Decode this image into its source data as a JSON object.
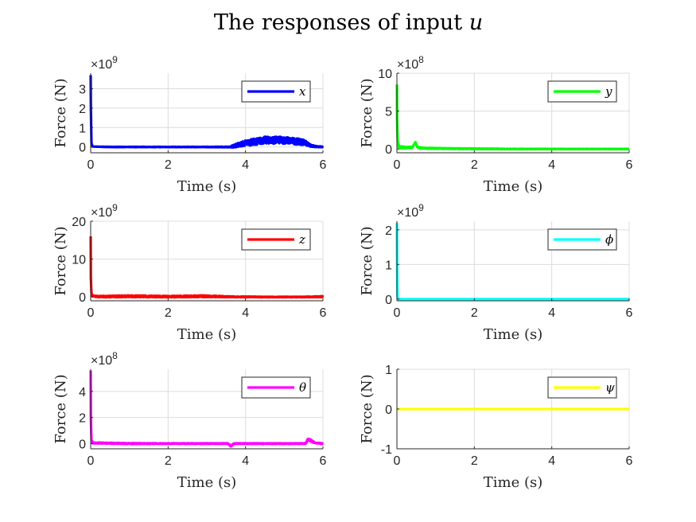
{
  "figure": {
    "title_prefix": "The responses of input ",
    "title_var": "u"
  },
  "chart_data": [
    {
      "type": "line",
      "xlabel": "Time (s)",
      "ylabel": "Force (N)",
      "exponent_base": "×10",
      "exponent_power": "9",
      "xlim": [
        0,
        6
      ],
      "ylim": [
        -0.3,
        3.8
      ],
      "xticks": [
        0,
        2,
        4,
        6
      ],
      "yticks": [
        0,
        1,
        2,
        3
      ],
      "grid": true,
      "legend_placement": "top-right",
      "series": [
        {
          "name": "x",
          "color": "#0000ff",
          "x": [
            0,
            0.005,
            0.02,
            0.05,
            0.5,
            1,
            2,
            3,
            3.6,
            3.7,
            4.0,
            4.5,
            5.0,
            5.5,
            5.7,
            6
          ],
          "y": [
            3.7,
            2.0,
            0.2,
            0.02,
            0,
            0,
            0,
            0,
            0,
            0.05,
            0.2,
            0.35,
            0.35,
            0.25,
            0.05,
            0
          ],
          "noise": [
            0,
            0,
            0,
            0,
            0.01,
            0.01,
            0.01,
            0.01,
            0.02,
            0.08,
            0.15,
            0.18,
            0.18,
            0.15,
            0.05,
            0.02
          ]
        }
      ]
    },
    {
      "type": "line",
      "xlabel": "Time (s)",
      "ylabel": "Force (N)",
      "exponent_base": "×10",
      "exponent_power": "8",
      "xlim": [
        0,
        6
      ],
      "ylim": [
        -0.5,
        10
      ],
      "xticks": [
        0,
        2,
        4,
        6
      ],
      "yticks": [
        0,
        5,
        10
      ],
      "grid": true,
      "legend_placement": "top-right",
      "series": [
        {
          "name": "y",
          "color": "#00ff00",
          "x": [
            0,
            0.005,
            0.02,
            0.05,
            0.1,
            0.2,
            0.4,
            0.48,
            0.52,
            0.56,
            0.7,
            1.5,
            3,
            4.5,
            6
          ],
          "y": [
            8.5,
            4.0,
            1.0,
            0.3,
            0.2,
            0.2,
            0.2,
            0.9,
            0.3,
            0.2,
            0.1,
            0.05,
            0,
            0,
            0
          ],
          "noise": [
            0,
            0,
            0,
            0.15,
            0.15,
            0.12,
            0.1,
            0.05,
            0.1,
            0.08,
            0.06,
            0.05,
            0.03,
            0.02,
            0.02
          ]
        }
      ]
    },
    {
      "type": "line",
      "xlabel": "Time (s)",
      "ylabel": "Force (N)",
      "exponent_base": "×10",
      "exponent_power": "9",
      "xlim": [
        0,
        6
      ],
      "ylim": [
        -1,
        20
      ],
      "xticks": [
        0,
        2,
        4,
        6
      ],
      "yticks": [
        0,
        10,
        20
      ],
      "grid": true,
      "legend_placement": "top-right",
      "series": [
        {
          "name": "z",
          "color": "#ff0000",
          "x": [
            0,
            0.005,
            0.02,
            0.05,
            0.2,
            1,
            2,
            3,
            3.6,
            4.5,
            5.5,
            6
          ],
          "y": [
            16,
            5,
            1.0,
            0.3,
            0.1,
            0.2,
            0.1,
            0.2,
            0.05,
            0,
            0,
            0.1
          ],
          "noise": [
            0,
            0,
            0,
            0.15,
            0.2,
            0.25,
            0.2,
            0.25,
            0.12,
            0.08,
            0.08,
            0.15
          ]
        }
      ]
    },
    {
      "type": "line",
      "xlabel": "Time (s)",
      "ylabel": "Force (N)",
      "exponent_base": "×10",
      "exponent_power": "9",
      "xlim": [
        0,
        6
      ],
      "ylim": [
        -0.05,
        2.25
      ],
      "xticks": [
        0,
        2,
        4,
        6
      ],
      "yticks": [
        0,
        1,
        2
      ],
      "grid": true,
      "legend_placement": "top-right",
      "series": [
        {
          "name": "ϕ",
          "color": "#00ffff",
          "x": [
            0,
            0.005,
            0.015,
            0.05,
            1,
            3,
            6
          ],
          "y": [
            2.2,
            1.0,
            0.05,
            0,
            0,
            0,
            0
          ],
          "noise": [
            0,
            0,
            0,
            0,
            0,
            0,
            0
          ]
        }
      ]
    },
    {
      "type": "line",
      "xlabel": "Time (s)",
      "ylabel": "Force (N)",
      "exponent_base": "×10",
      "exponent_power": "8",
      "xlim": [
        0,
        6
      ],
      "ylim": [
        -0.4,
        5.7
      ],
      "xticks": [
        0,
        2,
        4,
        6
      ],
      "yticks": [
        0,
        2,
        4
      ],
      "grid": true,
      "legend_placement": "top-right",
      "series": [
        {
          "name": "θ",
          "color": "#ff00ff",
          "x": [
            0,
            0.005,
            0.02,
            0.05,
            1,
            2,
            3,
            3.55,
            3.62,
            3.7,
            4.5,
            5.55,
            5.62,
            5.7,
            5.8,
            6
          ],
          "y": [
            5.6,
            2.0,
            0.3,
            0.05,
            0,
            0,
            0,
            0,
            -0.2,
            0,
            0,
            0,
            0.35,
            0.2,
            0.05,
            0
          ],
          "noise": [
            0,
            0,
            0,
            0.04,
            0.04,
            0.03,
            0.03,
            0.03,
            0.05,
            0.03,
            0.03,
            0.03,
            0.1,
            0.08,
            0.03,
            0.03
          ]
        }
      ]
    },
    {
      "type": "line",
      "xlabel": "Time (s)",
      "ylabel": "Force (N)",
      "exponent_base": "",
      "exponent_power": "",
      "xlim": [
        0,
        6
      ],
      "ylim": [
        -1,
        1
      ],
      "xticks": [
        0,
        2,
        4,
        6
      ],
      "yticks": [
        -1,
        0,
        1
      ],
      "grid": true,
      "legend_placement": "top-right",
      "series": [
        {
          "name": "ψ",
          "color": "#ffff00",
          "x": [
            0,
            6
          ],
          "y": [
            0,
            0
          ],
          "noise": [
            0,
            0
          ]
        }
      ]
    }
  ]
}
